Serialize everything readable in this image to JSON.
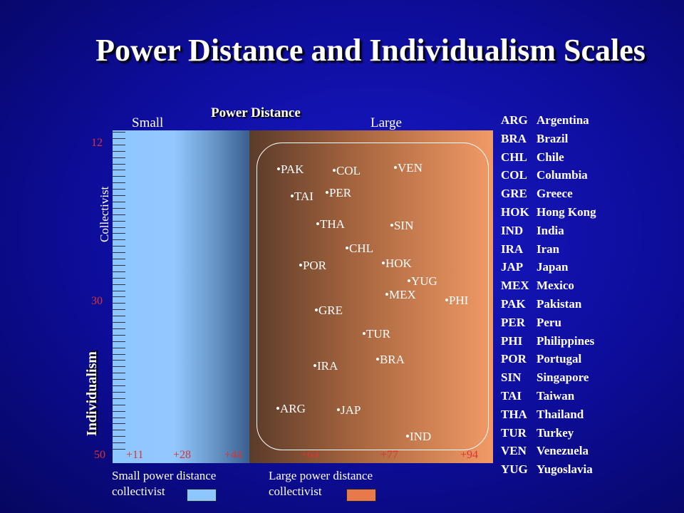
{
  "title": "Power Distance and Individualism Scales",
  "axis": {
    "x_title": "Power Distance",
    "small_label": "Small",
    "large_label": "Large",
    "y_title": "Individualism",
    "y_sub_label": "Collectivist",
    "y_ticks": [
      "12",
      "30",
      "50"
    ],
    "x_ticks": [
      "+11",
      "+28",
      "+44",
      "+64",
      "+77",
      "+94"
    ]
  },
  "points": [
    {
      "label": "•PAK"
    },
    {
      "label": "•COL"
    },
    {
      "label": "•VEN"
    },
    {
      "label": "•TAI"
    },
    {
      "label": "•PER"
    },
    {
      "label": "•THA"
    },
    {
      "label": "•SIN"
    },
    {
      "label": "•CHL"
    },
    {
      "label": "•POR"
    },
    {
      "label": "•HOK"
    },
    {
      "label": "•YUG"
    },
    {
      "label": "•MEX"
    },
    {
      "label": "•PHI"
    },
    {
      "label": "•GRE"
    },
    {
      "label": "•TUR"
    },
    {
      "label": "•BRA"
    },
    {
      "label": "•IRA"
    },
    {
      "label": "•ARG"
    },
    {
      "label": "•JAP"
    },
    {
      "label": "•IND"
    }
  ],
  "legend": [
    {
      "code": "ARG",
      "name": "Argentina"
    },
    {
      "code": "BRA",
      "name": "Brazil"
    },
    {
      "code": "CHL",
      "name": "Chile"
    },
    {
      "code": "COL",
      "name": "Columbia"
    },
    {
      "code": "GRE",
      "name": "Greece"
    },
    {
      "code": "HOK",
      "name": "Hong Kong"
    },
    {
      "code": "IND",
      "name": "India"
    },
    {
      "code": "IRA",
      "name": "Iran"
    },
    {
      "code": "JAP",
      "name": "Japan"
    },
    {
      "code": "MEX",
      "name": "Mexico"
    },
    {
      "code": "PAK",
      "name": "Pakistan"
    },
    {
      "code": "PER",
      "name": "Peru"
    },
    {
      "code": "PHI",
      "name": "Philippines"
    },
    {
      "code": "POR",
      "name": "Portugal"
    },
    {
      "code": "SIN",
      "name": "Singapore"
    },
    {
      "code": "TAI",
      "name": "Taiwan"
    },
    {
      "code": "THA",
      "name": "Thailand"
    },
    {
      "code": "TUR",
      "name": "Turkey"
    },
    {
      "code": "VEN",
      "name": "Venezuela"
    },
    {
      "code": "YUG",
      "name": "Yugoslavia"
    }
  ],
  "footer": {
    "small_line1": "Small power distance",
    "small_line2": "collectivist",
    "large_line1": "Large power distance",
    "large_line2": "collectivist"
  },
  "colors": {
    "small_swatch": "#8ec6ff",
    "large_swatch": "#e8794a",
    "tick_numbers": "#dd3333"
  }
}
